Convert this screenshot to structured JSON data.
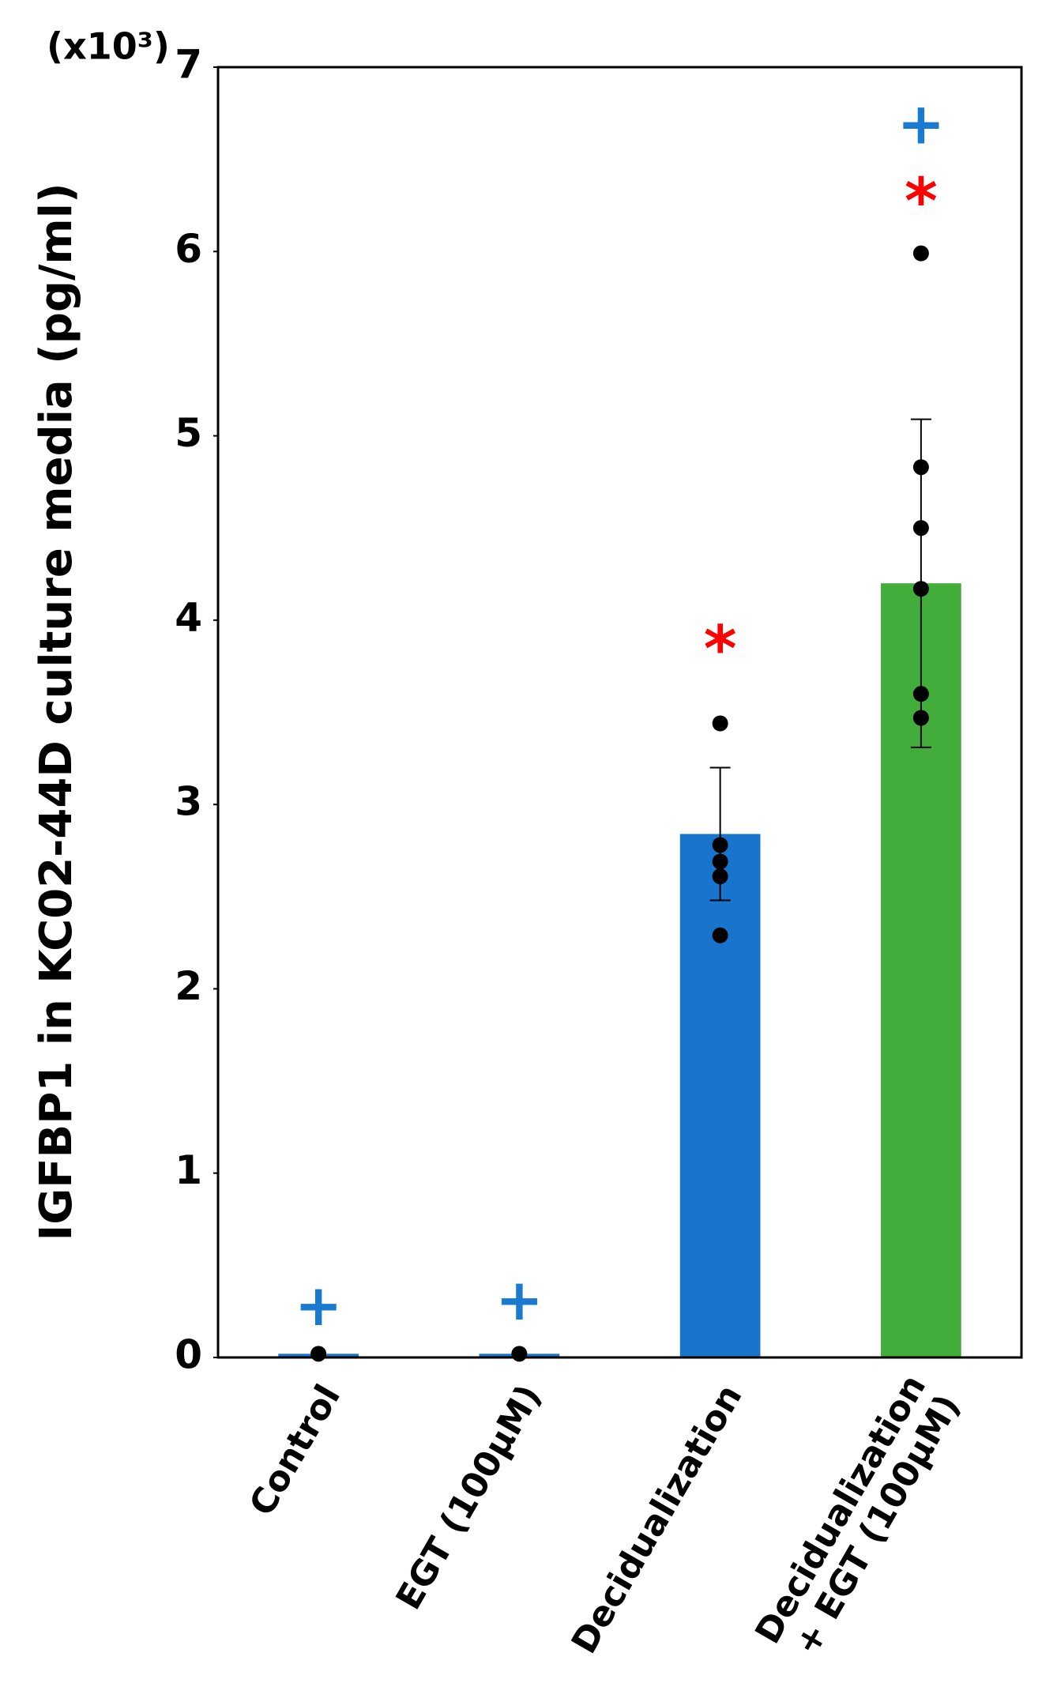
{
  "chart_data": {
    "type": "bar",
    "y_label": "IGFBP1 in KC02-44D culture media (pg/ml)",
    "y_multiplier": "(x10³)",
    "categories": [
      [
        "Control"
      ],
      [
        "EGT (100μM)"
      ],
      [
        "Decidualization"
      ],
      [
        "Decidualization",
        "+ EGT (100μM)"
      ]
    ],
    "values": [
      0.02,
      0.02,
      2.84,
      4.2
    ],
    "errors": [
      null,
      null,
      0.36,
      0.89
    ],
    "colors": [
      "#1874cd",
      "#1874cd",
      "#1874cd",
      "#43ad3b"
    ],
    "points": [
      [
        0.02
      ],
      [
        0.02
      ],
      [
        3.44,
        2.78,
        2.69,
        2.61,
        2.29
      ],
      [
        5.99,
        4.83,
        4.5,
        4.17,
        3.6,
        3.47
      ]
    ],
    "annotations": [
      {
        "category": 0,
        "text": "+",
        "y": 0.26,
        "color": "#1a7ad0"
      },
      {
        "category": 1,
        "text": "+",
        "y": 0.29,
        "color": "#1a7ad0"
      },
      {
        "category": 2,
        "text": "*",
        "y": 3.87,
        "color": "#ff0000"
      },
      {
        "category": 3,
        "text": "*",
        "y": 6.3,
        "color": "#ff0000"
      },
      {
        "category": 3,
        "text": "+",
        "y": 6.67,
        "color": "#1a7ad0"
      }
    ],
    "ylim": [
      0,
      7
    ],
    "yticks": [
      0,
      1,
      2,
      3,
      4,
      5,
      6,
      7
    ]
  }
}
